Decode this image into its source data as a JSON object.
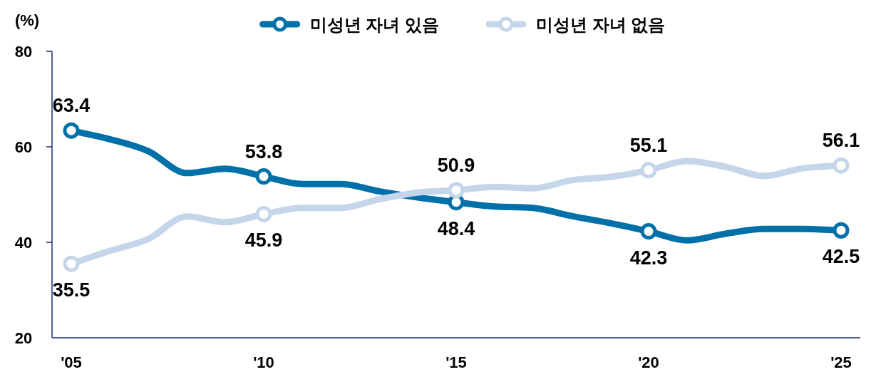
{
  "chart_data": {
    "type": "line",
    "ylabel": "(%)",
    "x": [
      2005,
      2006,
      2007,
      2008,
      2009,
      2010,
      2011,
      2012,
      2013,
      2014,
      2015,
      2016,
      2017,
      2018,
      2019,
      2020,
      2021,
      2022,
      2023,
      2024,
      2025
    ],
    "xlim": [
      2004.5,
      2025.5
    ],
    "xticks": [
      {
        "value": 2005,
        "label": "'05"
      },
      {
        "value": 2010,
        "label": "'10"
      },
      {
        "value": 2015,
        "label": "'15"
      },
      {
        "value": 2020,
        "label": "'20"
      },
      {
        "value": 2025,
        "label": "'25"
      }
    ],
    "ylim": [
      20,
      80
    ],
    "yticks": [
      20,
      40,
      60,
      80
    ],
    "legend": "top",
    "line_style": "solid",
    "series": [
      {
        "name": "미성년 자녀 있음",
        "color": "#0070a8",
        "values": [
          63.4,
          61.6,
          59.1,
          54.5,
          55.4,
          53.8,
          52.2,
          52.2,
          50.7,
          49.4,
          48.4,
          47.5,
          47.2,
          45.5,
          44.0,
          42.3,
          40.4,
          41.8,
          42.8,
          42.8,
          42.5
        ]
      },
      {
        "name": "미성년 자녀 없음",
        "color": "#c5d5ea",
        "values": [
          35.5,
          38.2,
          40.7,
          45.4,
          44.2,
          45.9,
          47.2,
          47.2,
          49.0,
          50.4,
          50.9,
          51.6,
          51.3,
          53.0,
          53.7,
          55.1,
          57.0,
          55.8,
          53.9,
          55.5,
          56.1
        ]
      },
      {
        "type": "scatter",
        "color": "#0070a8",
        "x": [
          2005,
          2010,
          2015,
          2020,
          2025
        ],
        "values": [
          63.4,
          53.8,
          48.4,
          42.3,
          42.5
        ],
        "value_labels": [
          "63.4",
          "53.8",
          "48.4",
          "42.3",
          "42.5"
        ]
      },
      {
        "type": "scatter",
        "color": "#c5d5ea",
        "x": [
          2005,
          2010,
          2015,
          2020,
          2025
        ],
        "values": [
          35.5,
          45.9,
          50.9,
          55.1,
          56.1
        ],
        "value_labels": [
          "35.5",
          "45.9",
          "50.9",
          "55.1",
          "56.1"
        ]
      }
    ]
  }
}
